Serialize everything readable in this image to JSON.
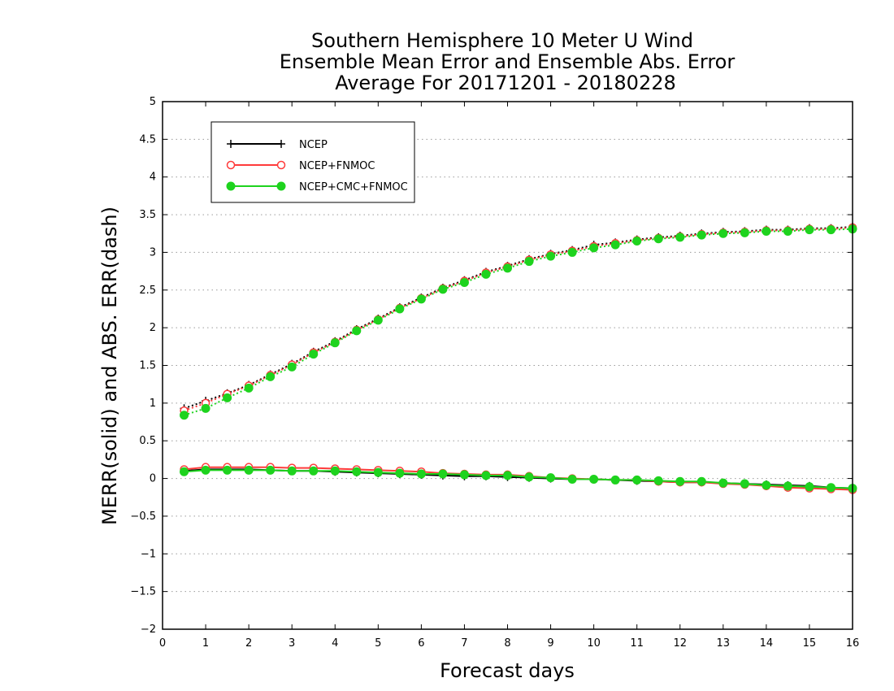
{
  "chart_data": {
    "type": "line",
    "title": [
      "Southern Hemisphere 10 Meter U Wind",
      "Ensemble Mean Error and Ensemble Abs. Error",
      "Average For 20171201 - 20180228"
    ],
    "xlabel": "Forecast days",
    "ylabel": "MERR(solid) and ABS. ERR(dash)",
    "xlim": [
      0,
      16
    ],
    "ylim": [
      -2,
      5
    ],
    "x_ticks": [
      0,
      1,
      2,
      3,
      4,
      5,
      6,
      7,
      8,
      9,
      10,
      11,
      12,
      13,
      14,
      15,
      16
    ],
    "y_ticks": [
      -2,
      -1.5,
      -1,
      -0.5,
      0,
      0.5,
      1,
      1.5,
      2,
      2.5,
      3,
      3.5,
      4,
      4.5,
      5
    ],
    "x_tick_labels": [
      "0",
      "1",
      "2",
      "3",
      "4",
      "5",
      "6",
      "7",
      "8",
      "9",
      "10",
      "11",
      "12",
      "13",
      "14",
      "15",
      "16"
    ],
    "y_tick_labels": [
      "−2",
      "−1.5",
      "−1",
      "−0.5",
      "0",
      "0.5",
      "1",
      "1.5",
      "2",
      "2.5",
      "3",
      "3.5",
      "4",
      "4.5",
      "5"
    ],
    "grid": "horizontal dotted",
    "legend_position": "top-left",
    "x": [
      0.5,
      1,
      1.5,
      2,
      2.5,
      3,
      3.5,
      4,
      4.5,
      5,
      5.5,
      6,
      6.5,
      7,
      7.5,
      8,
      8.5,
      9,
      9.5,
      10,
      10.5,
      11,
      11.5,
      12,
      12.5,
      13,
      13.5,
      14,
      14.5,
      15,
      15.5,
      16
    ],
    "series": [
      {
        "name": "NCEP",
        "color": "#000000",
        "marker": "plus",
        "merr": [
          0.1,
          0.12,
          0.12,
          0.12,
          0.11,
          0.1,
          0.1,
          0.09,
          0.08,
          0.07,
          0.06,
          0.05,
          0.04,
          0.03,
          0.03,
          0.02,
          0.01,
          0.0,
          -0.01,
          -0.01,
          -0.02,
          -0.03,
          -0.04,
          -0.05,
          -0.05,
          -0.06,
          -0.07,
          -0.08,
          -0.09,
          -0.1,
          -0.12,
          -0.13
        ],
        "abs_err": [
          0.93,
          1.03,
          1.13,
          1.24,
          1.38,
          1.52,
          1.68,
          1.82,
          1.98,
          2.12,
          2.27,
          2.4,
          2.53,
          2.63,
          2.74,
          2.82,
          2.91,
          2.98,
          3.03,
          3.1,
          3.13,
          3.17,
          3.2,
          3.22,
          3.25,
          3.27,
          3.28,
          3.3,
          3.3,
          3.32,
          3.32,
          3.34
        ]
      },
      {
        "name": "NCEP+FNMOC",
        "color": "#ff3b3b",
        "marker": "open-circle",
        "merr": [
          0.12,
          0.15,
          0.15,
          0.15,
          0.15,
          0.14,
          0.14,
          0.13,
          0.12,
          0.11,
          0.1,
          0.09,
          0.07,
          0.06,
          0.05,
          0.05,
          0.03,
          0.01,
          0.0,
          -0.01,
          -0.02,
          -0.02,
          -0.04,
          -0.05,
          -0.05,
          -0.07,
          -0.08,
          -0.1,
          -0.12,
          -0.13,
          -0.14,
          -0.15
        ],
        "abs_err": [
          0.9,
          1.0,
          1.12,
          1.23,
          1.37,
          1.51,
          1.67,
          1.81,
          1.97,
          2.11,
          2.26,
          2.39,
          2.52,
          2.62,
          2.73,
          2.81,
          2.9,
          2.97,
          3.02,
          3.08,
          3.12,
          3.16,
          3.19,
          3.21,
          3.24,
          3.26,
          3.27,
          3.29,
          3.29,
          3.31,
          3.31,
          3.33
        ]
      },
      {
        "name": "NCEP+CMC+FNMOC",
        "color": "#1ed31e",
        "marker": "filled-circle",
        "merr": [
          0.09,
          0.11,
          0.11,
          0.11,
          0.11,
          0.1,
          0.1,
          0.1,
          0.09,
          0.08,
          0.07,
          0.06,
          0.06,
          0.05,
          0.04,
          0.04,
          0.02,
          0.01,
          -0.01,
          -0.01,
          -0.02,
          -0.02,
          -0.03,
          -0.04,
          -0.04,
          -0.06,
          -0.07,
          -0.09,
          -0.1,
          -0.11,
          -0.12,
          -0.13
        ],
        "abs_err": [
          0.84,
          0.93,
          1.07,
          1.2,
          1.35,
          1.48,
          1.65,
          1.8,
          1.96,
          2.1,
          2.25,
          2.38,
          2.51,
          2.6,
          2.71,
          2.79,
          2.88,
          2.95,
          3.0,
          3.06,
          3.1,
          3.15,
          3.18,
          3.2,
          3.23,
          3.25,
          3.26,
          3.28,
          3.28,
          3.3,
          3.3,
          3.31
        ]
      }
    ]
  }
}
